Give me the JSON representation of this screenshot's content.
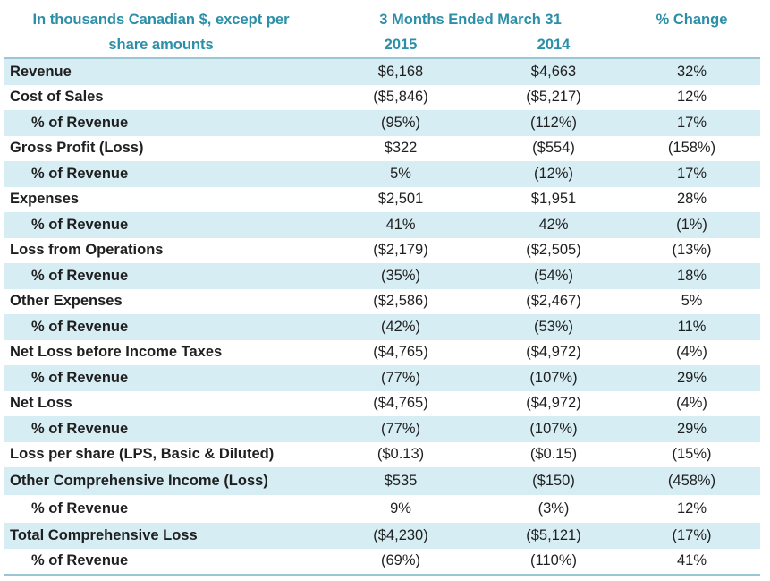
{
  "header": {
    "label_line1": "In thousands Canadian $, except per",
    "label_line2": "share amounts",
    "period": "3 Months Ended March 31",
    "year_a": "2015",
    "year_b": "2014",
    "change": "% Change"
  },
  "rows": [
    {
      "label": "Revenue",
      "a": "$6,168",
      "b": "$4,663",
      "c": "32%"
    },
    {
      "label": "Cost of Sales",
      "a": "($5,846)",
      "b": "($5,217)",
      "c": "12%"
    },
    {
      "label": "% of Revenue",
      "a": "(95%)",
      "b": "(112%)",
      "c": "17%"
    },
    {
      "label": "Gross Profit (Loss)",
      "a": "$322",
      "b": "($554)",
      "c": "(158%)"
    },
    {
      "label": "% of Revenue",
      "a": "5%",
      "b": "(12%)",
      "c": "17%"
    },
    {
      "label": "Expenses",
      "a": "$2,501",
      "b": "$1,951",
      "c": "28%"
    },
    {
      "label": "% of Revenue",
      "a": "41%",
      "b": "42%",
      "c": "(1%)"
    },
    {
      "label": "Loss from Operations",
      "a": "($2,179)",
      "b": "($2,505)",
      "c": "(13%)"
    },
    {
      "label": "% of Revenue",
      "a": "(35%)",
      "b": "(54%)",
      "c": "18%"
    },
    {
      "label": "Other Expenses",
      "a": "($2,586)",
      "b": "($2,467)",
      "c": "5%"
    },
    {
      "label": "% of Revenue",
      "a": "(42%)",
      "b": "(53%)",
      "c": "11%"
    },
    {
      "label": "Net Loss before Income Taxes",
      "a": "($4,765)",
      "b": "($4,972)",
      "c": "(4%)"
    },
    {
      "label": "% of Revenue",
      "a": "(77%)",
      "b": "(107%)",
      "c": "29%"
    },
    {
      "label": "Net Loss",
      "a": "($4,765)",
      "b": "($4,972)",
      "c": "(4%)"
    },
    {
      "label": "% of Revenue",
      "a": "(77%)",
      "b": "(107%)",
      "c": "29%"
    },
    {
      "label": "Loss per share (LPS, Basic & Diluted)",
      "a": "($0.13)",
      "b": "($0.15)",
      "c": "(15%)"
    },
    {
      "label": "Other Comprehensive Income (Loss)",
      "a": "$535",
      "b": "($150)",
      "c": "(458%)"
    },
    {
      "label": "% of Revenue",
      "a": "9%",
      "b": "(3%)",
      "c": "12%"
    },
    {
      "label": "Total Comprehensive Loss",
      "a": "($4,230)",
      "b": "($5,121)",
      "c": "(17%)"
    },
    {
      "label": "% of Revenue",
      "a": "(69%)",
      "b": "(110%)",
      "c": "41%"
    }
  ],
  "colors": {
    "header_text": "#2b8fa8",
    "row_shade": "#d6edf3",
    "rule": "#9cc6d3"
  }
}
